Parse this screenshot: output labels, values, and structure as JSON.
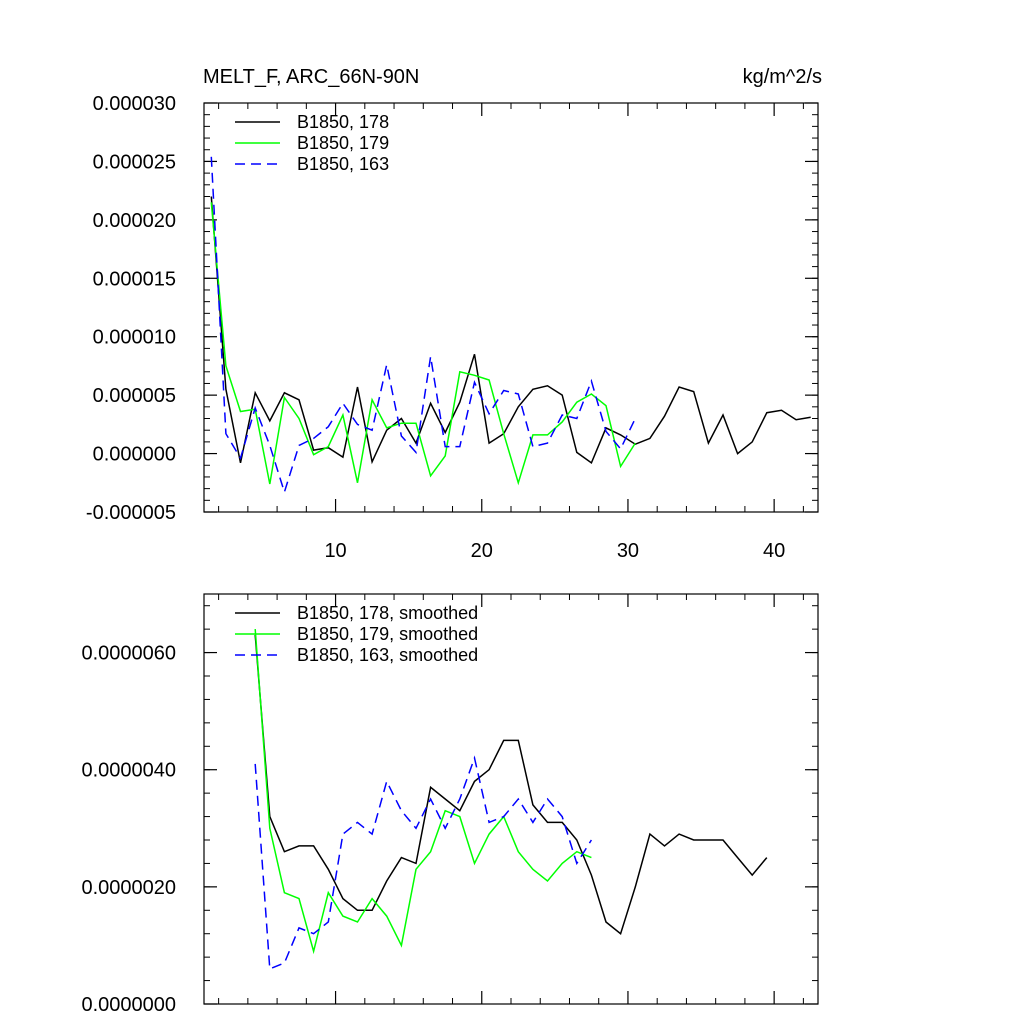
{
  "chart_data": [
    {
      "type": "line",
      "title": "MELT_F, ARC_66N-90N",
      "units": "kg/m^2/s",
      "xlim": [
        1,
        43
      ],
      "ylim": [
        -5e-06,
        3e-05
      ],
      "x_ticks": [
        10,
        20,
        30,
        40
      ],
      "x_tick_labels": [
        "10",
        "20",
        "30",
        "40"
      ],
      "y_ticks": [
        -5e-06,
        0,
        5e-06,
        1e-05,
        1.5e-05,
        2e-05,
        2.5e-05,
        3e-05
      ],
      "y_tick_labels": [
        "-0.000005",
        "0.000000",
        "0.000005",
        "0.000010",
        "0.000015",
        "0.000020",
        "0.000025",
        "0.000030"
      ],
      "legend_position": "top-left",
      "series": [
        {
          "name": "B1850, 178",
          "color": "#000000",
          "dash": "solid",
          "x": [
            1.5,
            2.5,
            3.5,
            4.5,
            5.5,
            6.5,
            7.5,
            8.5,
            9.5,
            10.5,
            11.5,
            12.5,
            13.5,
            14.5,
            15.5,
            16.5,
            17.5,
            18.5,
            19.5,
            20.5,
            21.5,
            22.5,
            23.5,
            24.5,
            25.5,
            26.5,
            27.5,
            28.5,
            29.5,
            30.5,
            31.5,
            32.5,
            33.5,
            34.5,
            35.5,
            36.5,
            37.5,
            38.5,
            39.5,
            40.5,
            41.5,
            42.5
          ],
          "values": [
            2.2e-05,
            5.5e-06,
            -8e-07,
            5.2e-06,
            2.8e-06,
            5.2e-06,
            4.6e-06,
            3e-07,
            5e-07,
            -3e-07,
            5.7e-06,
            -7e-07,
            2e-06,
            3e-06,
            9e-07,
            4.3e-06,
            1.8e-06,
            4.4e-06,
            8.5e-06,
            9e-07,
            1.7e-06,
            4e-06,
            5.5e-06,
            5.8e-06,
            5e-06,
            1e-07,
            -8e-07,
            2.2e-06,
            1.6e-06,
            8e-07,
            1.3e-06,
            3.2e-06,
            5.7e-06,
            5.3e-06,
            9e-07,
            3.3e-06,
            0.0,
            1e-06,
            3.5e-06,
            3.7e-06,
            2.9e-06,
            3.1e-06
          ]
        },
        {
          "name": "B1850, 179",
          "color": "#00ff00",
          "dash": "solid",
          "x": [
            1.5,
            2.5,
            3.5,
            4.5,
            5.5,
            6.5,
            7.5,
            8.5,
            9.5,
            10.5,
            11.5,
            12.5,
            13.5,
            14.5,
            15.5,
            16.5,
            17.5,
            18.5,
            19.5,
            20.5,
            21.5,
            22.5,
            23.5,
            24.5,
            25.5,
            26.5,
            27.5,
            28.5,
            29.5,
            30.5
          ],
          "values": [
            2.15e-05,
            7.5e-06,
            3.6e-06,
            3.8e-06,
            -2.6e-06,
            4.8e-06,
            3e-06,
            -1e-07,
            6e-07,
            3.3e-06,
            -2.5e-06,
            4.6e-06,
            2.2e-06,
            2.6e-06,
            2.6e-06,
            -1.9e-06,
            -2e-07,
            7e-06,
            6.7e-06,
            6.3e-06,
            1.7e-06,
            -2.5e-06,
            1.6e-06,
            1.6e-06,
            2.7e-06,
            4.4e-06,
            5.1e-06,
            4.1e-06,
            -1.1e-06,
            9e-07
          ]
        },
        {
          "name": "B1850, 163",
          "color": "#0000ff",
          "dash": "dashed",
          "x": [
            1.5,
            2.5,
            3.5,
            4.5,
            5.5,
            6.5,
            7.5,
            8.5,
            9.5,
            10.5,
            11.5,
            12.5,
            13.5,
            14.5,
            15.5,
            16.5,
            17.5,
            18.5,
            19.5,
            20.5,
            21.5,
            22.5,
            23.5,
            24.5,
            25.5,
            26.5,
            27.5,
            28.5,
            29.5,
            30.5
          ],
          "values": [
            2.54e-05,
            1.7e-06,
            -4e-07,
            3.9e-06,
            7e-07,
            -3.3e-06,
            7e-07,
            1.3e-06,
            2.3e-06,
            4.3e-06,
            2.5e-06,
            2e-06,
            7.6e-06,
            1.5e-06,
            1e-07,
            8.3e-06,
            6e-07,
            6e-07,
            6.1e-06,
            3.4e-06,
            5.4e-06,
            5.1e-06,
            6e-07,
            9e-07,
            3.3e-06,
            3e-06,
            6.2e-06,
            1.9e-06,
            4e-07,
            3e-06
          ]
        }
      ]
    },
    {
      "type": "line",
      "xlim": [
        1,
        43
      ],
      "ylim": [
        0,
        7e-06
      ],
      "x_ticks": [
        10,
        20,
        30,
        40
      ],
      "y_ticks": [
        0,
        2e-06,
        4e-06,
        6e-06
      ],
      "y_tick_labels": [
        "0.0000000",
        "0.0000020",
        "0.0000040",
        "0.0000060"
      ],
      "legend_position": "top-left",
      "series": [
        {
          "name": "B1850, 178, smoothed",
          "color": "#000000",
          "dash": "solid",
          "x": [
            4.5,
            5.5,
            6.5,
            7.5,
            8.5,
            9.5,
            10.5,
            11.5,
            12.5,
            13.5,
            14.5,
            15.5,
            16.5,
            17.5,
            18.5,
            19.5,
            20.5,
            21.5,
            22.5,
            23.5,
            24.5,
            25.5,
            26.5,
            27.5,
            28.5,
            29.5,
            30.5,
            31.5,
            32.5,
            33.5,
            34.5,
            35.5,
            36.5,
            37.5,
            38.5,
            39.5
          ],
          "values": [
            6.3e-06,
            3.2e-06,
            2.6e-06,
            2.7e-06,
            2.7e-06,
            2.3e-06,
            1.8e-06,
            1.6e-06,
            1.6e-06,
            2.1e-06,
            2.5e-06,
            2.4e-06,
            3.7e-06,
            3.5e-06,
            3.3e-06,
            3.8e-06,
            4e-06,
            4.5e-06,
            4.5e-06,
            3.4e-06,
            3.1e-06,
            3.1e-06,
            2.8e-06,
            2.2e-06,
            1.4e-06,
            1.2e-06,
            2e-06,
            2.9e-06,
            2.7e-06,
            2.9e-06,
            2.8e-06,
            2.8e-06,
            2.8e-06,
            2.5e-06,
            2.2e-06,
            2.5e-06
          ]
        },
        {
          "name": "B1850, 179, smoothed",
          "color": "#00ff00",
          "dash": "solid",
          "x": [
            4.5,
            5.5,
            6.5,
            7.5,
            8.5,
            9.5,
            10.5,
            11.5,
            12.5,
            13.5,
            14.5,
            15.5,
            16.5,
            17.5,
            18.5,
            19.5,
            20.5,
            21.5,
            22.5,
            23.5,
            24.5,
            25.5,
            26.5,
            27.5
          ],
          "values": [
            6.4e-06,
            3e-06,
            1.9e-06,
            1.8e-06,
            9e-07,
            1.9e-06,
            1.5e-06,
            1.4e-06,
            1.8e-06,
            1.5e-06,
            1e-06,
            2.3e-06,
            2.6e-06,
            3.3e-06,
            3.2e-06,
            2.4e-06,
            2.9e-06,
            3.2e-06,
            2.6e-06,
            2.3e-06,
            2.1e-06,
            2.4e-06,
            2.6e-06,
            2.5e-06
          ]
        },
        {
          "name": "B1850, 163, smoothed",
          "color": "#0000ff",
          "dash": "dashed",
          "x": [
            4.5,
            5.5,
            6.5,
            7.5,
            8.5,
            9.5,
            10.5,
            11.5,
            12.5,
            13.5,
            14.5,
            15.5,
            16.5,
            17.5,
            18.5,
            19.5,
            20.5,
            21.5,
            22.5,
            23.5,
            24.5,
            25.5,
            26.5,
            27.5
          ],
          "values": [
            4.1e-06,
            6e-07,
            7e-07,
            1.3e-06,
            1.2e-06,
            1.4e-06,
            2.9e-06,
            3.1e-06,
            2.9e-06,
            3.8e-06,
            3.3e-06,
            3e-06,
            3.5e-06,
            3e-06,
            3.5e-06,
            4.2e-06,
            3.1e-06,
            3.2e-06,
            3.5e-06,
            3.1e-06,
            3.5e-06,
            3.2e-06,
            2.4e-06,
            2.8e-06
          ]
        }
      ]
    }
  ]
}
